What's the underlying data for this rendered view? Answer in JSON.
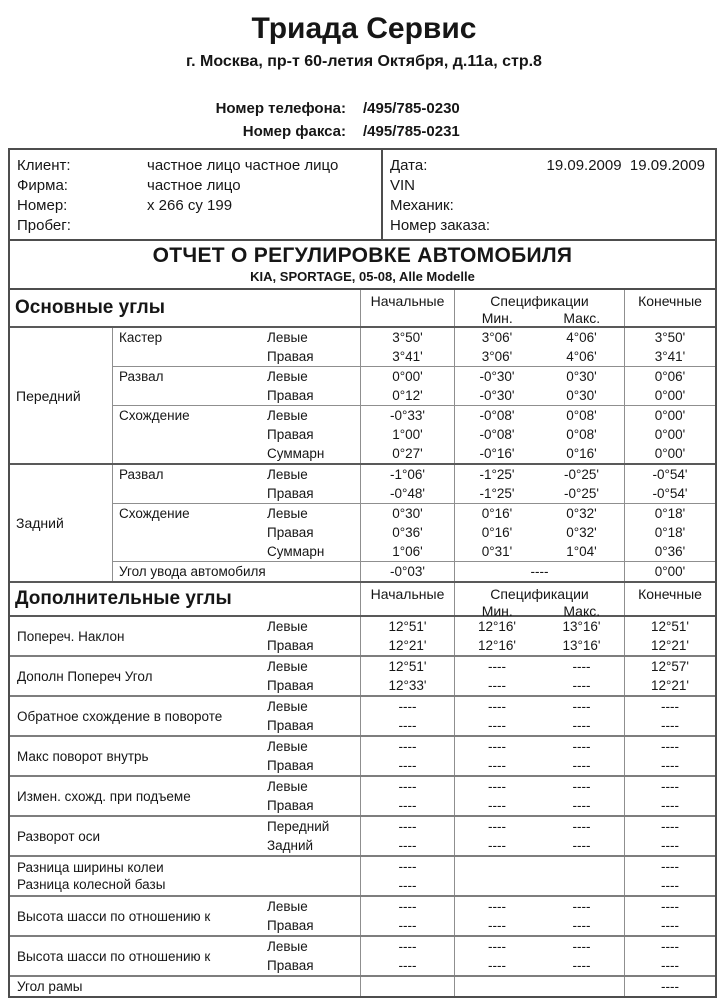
{
  "letterhead": {
    "company": "Триада Сервис",
    "address": "г. Москва, пр-т 60-летия Октября, д.11а, стр.8",
    "phone_label": "Номер телефона:",
    "phone_value": "/495/785-0230",
    "fax_label": "Номер факса:",
    "fax_value": "/495/785-0231"
  },
  "client_block": {
    "left_rows": [
      {
        "label": "Клиент:",
        "value": "частное лицо частное лицо"
      },
      {
        "label": "Фирма:",
        "value": "частное лицо"
      },
      {
        "label": "Номер:",
        "value": "х 266 су 199"
      },
      {
        "label": "Пробег:",
        "value": ""
      }
    ],
    "right_rows": [
      {
        "label": "Дата:",
        "value": "19.09.2009  19.09.2009"
      },
      {
        "label": "VIN",
        "value": ""
      },
      {
        "label": "Механик:",
        "value": ""
      },
      {
        "label": "Номер заказа:",
        "value": ""
      }
    ]
  },
  "report_header": {
    "title": "ОТЧЕТ О РЕГУЛИРОВКЕ АВТОМОБИЛЯ",
    "subtitle": "KIA, SPORTAGE, 05-08, Alle Modelle"
  },
  "columns": {
    "initial": "Начальные",
    "spec": "Спецификации",
    "min": "Мин.",
    "max": "Макс.",
    "final": "Конечные"
  },
  "main_section": {
    "title": "Основные углы",
    "axle_groups": [
      {
        "axle": "Передний",
        "blocks": [
          {
            "name": "Кастер",
            "rows": [
              {
                "side": "Левые",
                "initial": "3°50'",
                "min": "3°06'",
                "max": "4°06'",
                "final": "3°50'"
              },
              {
                "side": "Правая",
                "initial": "3°41'",
                "min": "3°06'",
                "max": "4°06'",
                "final": "3°41'"
              }
            ]
          },
          {
            "name": "Развал",
            "rows": [
              {
                "side": "Левые",
                "initial": "0°00'",
                "min": "-0°30'",
                "max": "0°30'",
                "final": "0°06'"
              },
              {
                "side": "Правая",
                "initial": "0°12'",
                "min": "-0°30'",
                "max": "0°30'",
                "final": "0°00'"
              }
            ]
          },
          {
            "name": "Схождение",
            "rows": [
              {
                "side": "Левые",
                "initial": "-0°33'",
                "min": "-0°08'",
                "max": "0°08'",
                "final": "0°00'"
              },
              {
                "side": "Правая",
                "initial": "1°00'",
                "min": "-0°08'",
                "max": "0°08'",
                "final": "0°00'"
              },
              {
                "side": "Суммарн",
                "initial": "0°27'",
                "min": "-0°16'",
                "max": "0°16'",
                "final": "0°00'"
              }
            ]
          }
        ]
      },
      {
        "axle": "Задний",
        "blocks": [
          {
            "name": "Развал",
            "rows": [
              {
                "side": "Левые",
                "initial": "-1°06'",
                "min": "-1°25'",
                "max": "-0°25'",
                "final": "-0°54'"
              },
              {
                "side": "Правая",
                "initial": "-0°48'",
                "min": "-1°25'",
                "max": "-0°25'",
                "final": "-0°54'"
              }
            ]
          },
          {
            "name": "Схождение",
            "rows": [
              {
                "side": "Левые",
                "initial": "0°30'",
                "min": "0°16'",
                "max": "0°32'",
                "final": "0°18'"
              },
              {
                "side": "Правая",
                "initial": "0°36'",
                "min": "0°16'",
                "max": "0°32'",
                "final": "0°18'"
              },
              {
                "side": "Суммарн",
                "initial": "1°06'",
                "min": "0°31'",
                "max": "1°04'",
                "final": "0°36'"
              }
            ]
          },
          {
            "name": "Угол увода автомобиля",
            "wide_label": true,
            "rows": [
              {
                "initial": "-0°03'",
                "spec_merged": "----",
                "final": "0°00'"
              }
            ]
          }
        ]
      }
    ]
  },
  "additional_section": {
    "title": "Дополнительные углы",
    "groups": [
      {
        "label_lines": [
          "Попереч. Наклон"
        ],
        "rows": [
          {
            "side": "Левые",
            "initial": "12°51'",
            "min": "12°16'",
            "max": "13°16'",
            "final": "12°51'"
          },
          {
            "side": "Правая",
            "initial": "12°21'",
            "min": "12°16'",
            "max": "13°16'",
            "final": "12°21'"
          }
        ]
      },
      {
        "label_lines": [
          "Дополн Попереч Угол"
        ],
        "rows": [
          {
            "side": "Левые",
            "initial": "12°51'",
            "min": "----",
            "max": "----",
            "final": "12°57'"
          },
          {
            "side": "Правая",
            "initial": "12°33'",
            "min": "----",
            "max": "----",
            "final": "12°21'"
          }
        ]
      },
      {
        "label_lines": [
          "Обратное схождение в повороте"
        ],
        "rows": [
          {
            "side": "Левые",
            "initial": "----",
            "min": "----",
            "max": "----",
            "final": "----"
          },
          {
            "side": "Правая",
            "initial": "----",
            "min": "----",
            "max": "----",
            "final": "----"
          }
        ]
      },
      {
        "label_lines": [
          "Макс поворот внутрь"
        ],
        "rows": [
          {
            "side": "Левые",
            "initial": "----",
            "min": "----",
            "max": "----",
            "final": "----"
          },
          {
            "side": "Правая",
            "initial": "----",
            "min": "----",
            "max": "----",
            "final": "----"
          }
        ]
      },
      {
        "label_lines": [
          "Измен. схожд. при подъеме"
        ],
        "rows": [
          {
            "side": "Левые",
            "initial": "----",
            "min": "----",
            "max": "----",
            "final": "----"
          },
          {
            "side": "Правая",
            "initial": "----",
            "min": "----",
            "max": "----",
            "final": "----"
          }
        ]
      },
      {
        "label_lines": [
          "Разворот оси"
        ],
        "rows": [
          {
            "side": "Передний",
            "initial": "----",
            "min": "----",
            "max": "----",
            "final": "----"
          },
          {
            "side": "Задний",
            "initial": "----",
            "min": "----",
            "max": "----",
            "final": "----"
          }
        ]
      },
      {
        "label_lines": [
          "Разница ширины колеи",
          "Разница колесной базы"
        ],
        "rows": [
          {
            "side": "",
            "initial": "----",
            "min": "",
            "max": "",
            "final": "----"
          },
          {
            "side": "",
            "initial": "----",
            "min": "",
            "max": "",
            "final": "----"
          }
        ]
      },
      {
        "label_lines": [
          "Высота шасси по отношению к"
        ],
        "rows": [
          {
            "side": "Левые",
            "initial": "----",
            "min": "----",
            "max": "----",
            "final": "----"
          },
          {
            "side": "Правая",
            "initial": "----",
            "min": "----",
            "max": "----",
            "final": "----"
          }
        ]
      },
      {
        "label_lines": [
          "Высота шасси по отношению к"
        ],
        "rows": [
          {
            "side": "Левые",
            "initial": "----",
            "min": "----",
            "max": "----",
            "final": "----"
          },
          {
            "side": "Правая",
            "initial": "----",
            "min": "----",
            "max": "----",
            "final": "----"
          }
        ]
      },
      {
        "label_lines": [
          "Угол рамы"
        ],
        "rows": [
          {
            "side": "",
            "initial": "",
            "min": "",
            "max": "",
            "final": "----"
          }
        ]
      }
    ]
  }
}
